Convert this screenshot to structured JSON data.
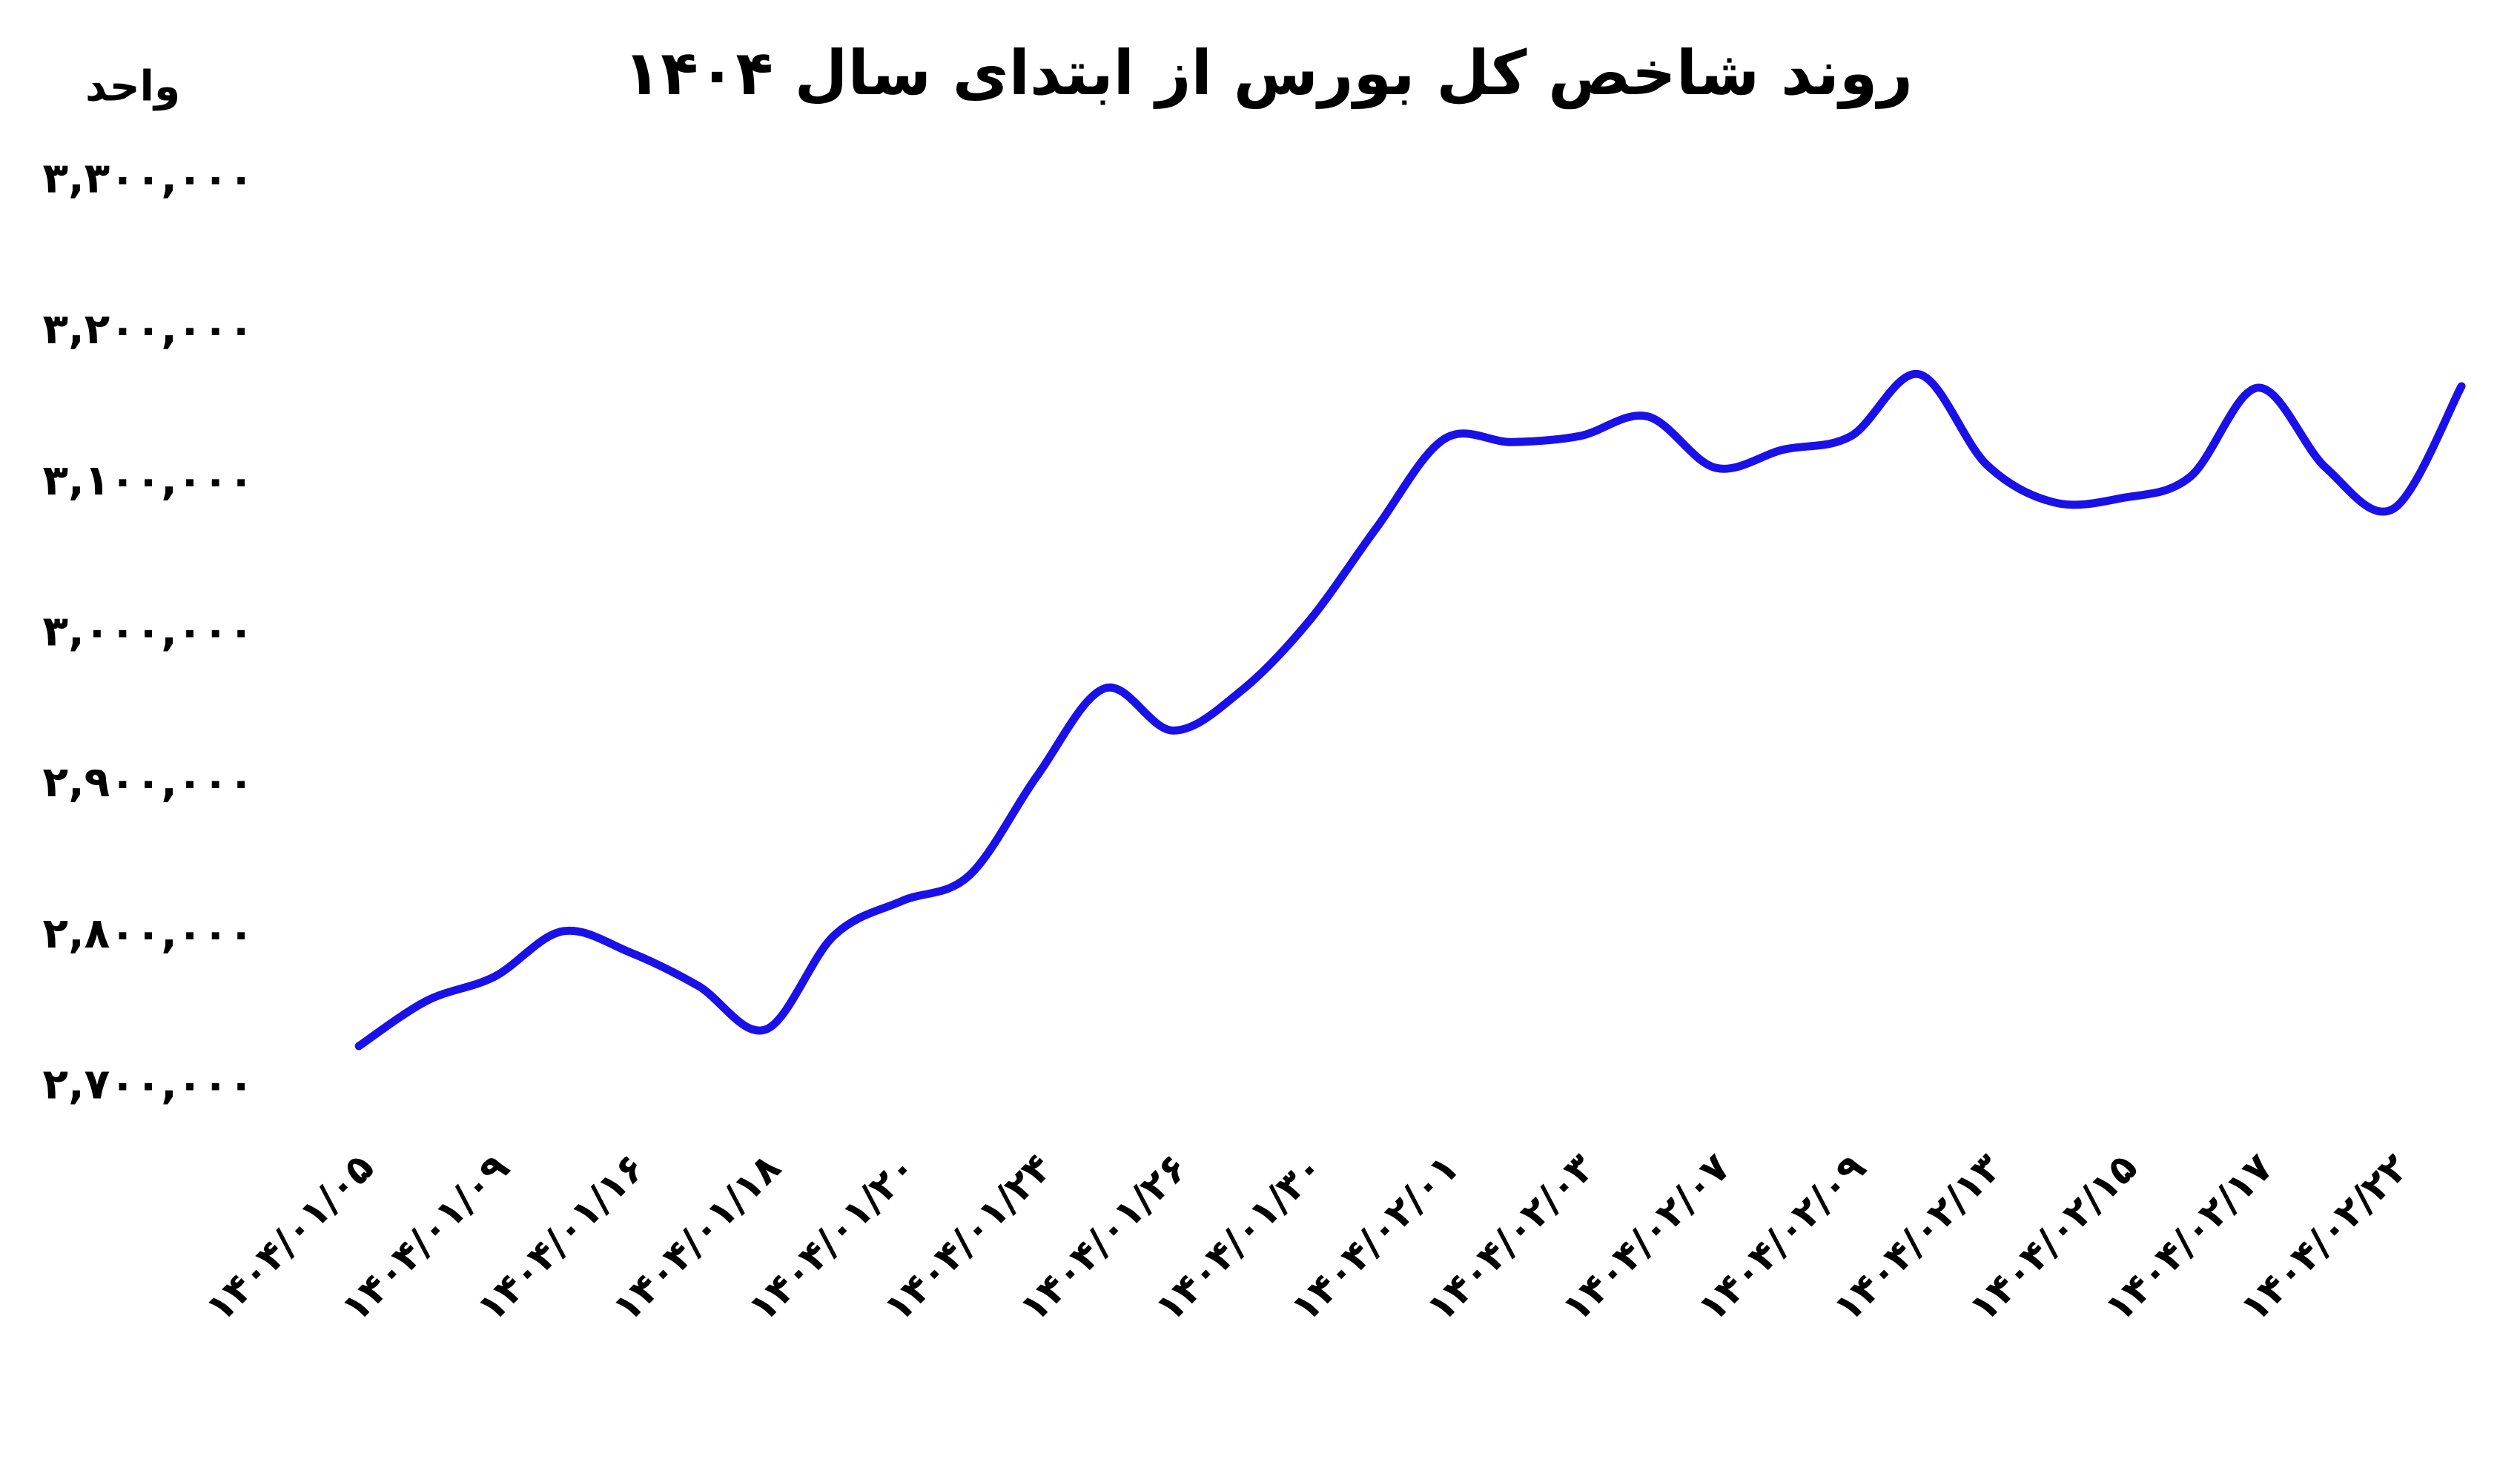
{
  "chart_data": {
    "type": "line",
    "title": "روند شاخص کل بورس از ابتدای سال ۱۴۰۴",
    "y_label": "واحد",
    "categories": [
      "۱۴۰۴/۰۱/۰۵",
      null,
      "۱۴۰۴/۰۱/۰۹",
      null,
      "۱۴۰۴/۰۱/۱۶",
      null,
      "۱۴۰۴/۰۱/۱۸",
      null,
      "۱۴۰۴/۰۱/۲۰",
      null,
      "۱۴۰۴/۰۱/۲۴",
      null,
      "۱۴۰۴/۰۱/۲۶",
      null,
      "۱۴۰۴/۰۱/۳۰",
      null,
      "۱۴۰۴/۰۲/۰۱",
      null,
      "۱۴۰۴/۰۲/۰۳",
      null,
      "۱۴۰۴/۰۲/۰۷",
      null,
      "۱۴۰۴/۰۲/۰۹",
      null,
      "۱۴۰۴/۰۲/۱۳",
      null,
      "۱۴۰۴/۰۲/۱۵",
      null,
      "۱۴۰۴/۰۲/۱۷",
      null,
      "۱۴۰۴/۰۲/۲۲",
      null
    ],
    "values": [
      2727000,
      2757000,
      2773000,
      2803000,
      2789000,
      2767000,
      2738000,
      2800000,
      2823000,
      2840000,
      2906000,
      2964000,
      2936000,
      2962000,
      3008000,
      3070000,
      3129000,
      3127000,
      3131000,
      3144000,
      3110000,
      3122000,
      3131000,
      3172000,
      3112000,
      3087000,
      3090000,
      3104000,
      3163000,
      3110000,
      3083000,
      3164000
    ],
    "color": "#1a10e8",
    "ylim": [
      2700000,
      3300000
    ],
    "yticks": [
      {
        "value": 2700000,
        "label": "۲,۷۰۰,۰۰۰"
      },
      {
        "value": 2800000,
        "label": "۲,۸۰۰,۰۰۰"
      },
      {
        "value": 2900000,
        "label": "۲,۹۰۰,۰۰۰"
      },
      {
        "value": 3000000,
        "label": "۳,۰۰۰,۰۰۰"
      },
      {
        "value": 3100000,
        "label": "۳,۱۰۰,۰۰۰"
      },
      {
        "value": 3200000,
        "label": "۳,۲۰۰,۰۰۰"
      },
      {
        "value": 3300000,
        "label": "۳,۳۰۰,۰۰۰"
      }
    ],
    "grid": false
  }
}
